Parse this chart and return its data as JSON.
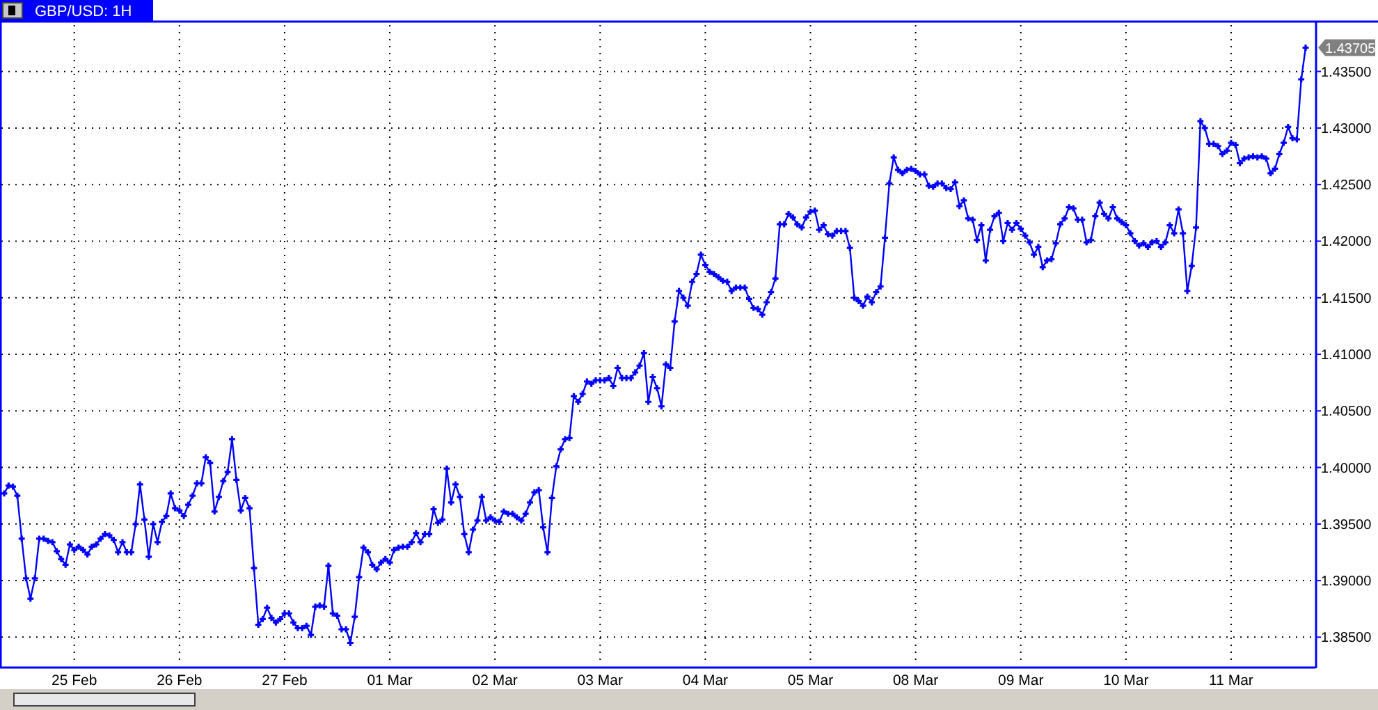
{
  "chart_data": {
    "type": "line",
    "title": "GBP/USD: 1H",
    "grid": true,
    "marker": "cross",
    "ylim": [
      1.3825,
      1.4391
    ],
    "yticks": [
      {
        "value": 1.385,
        "label": "1.38500"
      },
      {
        "value": 1.39,
        "label": "1.39000"
      },
      {
        "value": 1.395,
        "label": "1.39500"
      },
      {
        "value": 1.4,
        "label": "1.40000"
      },
      {
        "value": 1.405,
        "label": "1.40500"
      },
      {
        "value": 1.41,
        "label": "1.41000"
      },
      {
        "value": 1.415,
        "label": "1.41500"
      },
      {
        "value": 1.42,
        "label": "1.42000"
      },
      {
        "value": 1.425,
        "label": "1.42500"
      },
      {
        "value": 1.43,
        "label": "1.43000"
      },
      {
        "value": 1.435,
        "label": "1.43500"
      }
    ],
    "annotations": [
      "1.43705"
    ],
    "categories": [
      null,
      null,
      null,
      null,
      null,
      null,
      null,
      null,
      null,
      null,
      null,
      null,
      null,
      null,
      null,
      null,
      "25 Feb",
      null,
      null,
      null,
      null,
      null,
      null,
      null,
      null,
      null,
      null,
      null,
      null,
      null,
      null,
      null,
      null,
      null,
      null,
      null,
      null,
      null,
      null,
      null,
      "26 Feb",
      null,
      null,
      null,
      null,
      null,
      null,
      null,
      null,
      null,
      null,
      null,
      null,
      null,
      null,
      null,
      null,
      null,
      null,
      null,
      null,
      null,
      null,
      null,
      "27 Feb",
      null,
      null,
      null,
      null,
      null,
      null,
      null,
      null,
      null,
      null,
      null,
      null,
      null,
      null,
      null,
      null,
      null,
      null,
      null,
      null,
      null,
      null,
      null,
      "01 Mar",
      null,
      null,
      null,
      null,
      null,
      null,
      null,
      null,
      null,
      null,
      null,
      null,
      null,
      null,
      null,
      null,
      null,
      null,
      null,
      null,
      null,
      null,
      null,
      "02 Mar",
      null,
      null,
      null,
      null,
      null,
      null,
      null,
      null,
      null,
      null,
      null,
      null,
      null,
      null,
      null,
      null,
      null,
      null,
      null,
      null,
      null,
      null,
      null,
      "03 Mar",
      null,
      null,
      null,
      null,
      null,
      null,
      null,
      null,
      null,
      null,
      null,
      null,
      null,
      null,
      null,
      null,
      null,
      null,
      null,
      null,
      null,
      null,
      null,
      "04 Mar",
      null,
      null,
      null,
      null,
      null,
      null,
      null,
      null,
      null,
      null,
      null,
      null,
      null,
      null,
      null,
      null,
      null,
      null,
      null,
      null,
      null,
      null,
      null,
      "05 Mar",
      null,
      null,
      null,
      null,
      null,
      null,
      null,
      null,
      null,
      null,
      null,
      null,
      null,
      null,
      null,
      null,
      null,
      null,
      null,
      null,
      null,
      null,
      null,
      "08 Mar",
      null,
      null,
      null,
      null,
      null,
      null,
      null,
      null,
      null,
      null,
      null,
      null,
      null,
      null,
      null,
      null,
      null,
      null,
      null,
      null,
      null,
      null,
      null,
      "09 Mar",
      null,
      null,
      null,
      null,
      null,
      null,
      null,
      null,
      null,
      null,
      null,
      null,
      null,
      null,
      null,
      null,
      null,
      null,
      null,
      null,
      null,
      null,
      null,
      "10 Mar",
      null,
      null,
      null,
      null,
      null,
      null,
      null,
      null,
      null,
      null,
      null,
      null,
      null,
      null,
      null,
      null,
      null,
      null,
      null,
      null,
      null,
      null,
      null,
      "11 Mar",
      null,
      null,
      null,
      null,
      null,
      null,
      null,
      null,
      null,
      null,
      null,
      null,
      null,
      null,
      null,
      null,
      null
    ],
    "series": [
      {
        "color": "#0000ff",
        "values": [
          1.3977,
          1.3984,
          1.3983,
          1.3975,
          1.3937,
          1.3902,
          1.3884,
          1.3902,
          1.3937,
          1.3937,
          1.3935,
          1.3934,
          1.3926,
          1.3919,
          1.3914,
          1.3932,
          1.3927,
          1.393,
          1.3927,
          1.3923,
          1.393,
          1.3932,
          1.3937,
          1.3941,
          1.394,
          1.3936,
          1.3925,
          1.3934,
          1.3925,
          1.3925,
          1.395,
          1.3985,
          1.3954,
          1.3921,
          1.395,
          1.3934,
          1.3952,
          1.3957,
          1.3977,
          1.3964,
          1.3962,
          1.3957,
          1.3967,
          1.3975,
          1.3986,
          1.3986,
          1.4009,
          1.4004,
          1.3961,
          1.3974,
          1.3988,
          1.3996,
          1.4025,
          1.3989,
          1.3962,
          1.3973,
          1.3964,
          1.3911,
          1.3861,
          1.3866,
          1.3876,
          1.3867,
          1.3863,
          1.3866,
          1.3871,
          1.3871,
          1.3863,
          1.3858,
          1.3858,
          1.386,
          1.3852,
          1.3877,
          1.3878,
          1.3877,
          1.3913,
          1.3871,
          1.3869,
          1.3857,
          1.3857,
          1.3845,
          1.3868,
          1.3903,
          1.3929,
          1.3925,
          1.3914,
          1.391,
          1.3916,
          1.3919,
          1.3916,
          1.3927,
          1.3929,
          1.393,
          1.393,
          1.3934,
          1.3942,
          1.3934,
          1.3941,
          1.3941,
          1.3963,
          1.3951,
          1.3954,
          1.3999,
          1.3969,
          1.3985,
          1.3974,
          1.3941,
          1.3925,
          1.3945,
          1.3953,
          1.3974,
          1.3953,
          1.3956,
          1.3953,
          1.3952,
          1.3961,
          1.3959,
          1.3959,
          1.3956,
          1.3953,
          1.3959,
          1.3969,
          1.3978,
          1.398,
          1.3947,
          1.3925,
          1.3973,
          1.4001,
          1.4016,
          1.4025,
          1.4026,
          1.4063,
          1.4058,
          1.4065,
          1.4076,
          1.4074,
          1.4077,
          1.4077,
          1.4077,
          1.4079,
          1.4072,
          1.4088,
          1.4079,
          1.4079,
          1.4079,
          1.4084,
          1.409,
          1.4101,
          1.4058,
          1.408,
          1.407,
          1.4054,
          1.4091,
          1.4088,
          1.4129,
          1.4156,
          1.415,
          1.4143,
          1.4164,
          1.4171,
          1.4188,
          1.4179,
          1.4173,
          1.4171,
          1.4168,
          1.4165,
          1.4164,
          1.4156,
          1.4159,
          1.4159,
          1.4159,
          1.4149,
          1.4141,
          1.414,
          1.4135,
          1.4146,
          1.4155,
          1.4167,
          1.4215,
          1.4215,
          1.4224,
          1.4221,
          1.4215,
          1.4212,
          1.4221,
          1.4226,
          1.4227,
          1.421,
          1.4214,
          1.4206,
          1.4205,
          1.4209,
          1.4209,
          1.4209,
          1.4194,
          1.415,
          1.4147,
          1.4143,
          1.4151,
          1.4146,
          1.4155,
          1.416,
          1.4203,
          1.4251,
          1.4274,
          1.4263,
          1.426,
          1.4263,
          1.4264,
          1.4262,
          1.4259,
          1.4259,
          1.4249,
          1.4248,
          1.4251,
          1.4251,
          1.4247,
          1.4246,
          1.4252,
          1.4231,
          1.4236,
          1.422,
          1.4219,
          1.4201,
          1.4214,
          1.4183,
          1.421,
          1.4222,
          1.4225,
          1.42,
          1.4216,
          1.421,
          1.4216,
          1.4211,
          1.4205,
          1.4199,
          1.4188,
          1.4195,
          1.4177,
          1.4183,
          1.4184,
          1.4198,
          1.4215,
          1.422,
          1.423,
          1.4229,
          1.4219,
          1.4219,
          1.4199,
          1.4201,
          1.4222,
          1.4234,
          1.4224,
          1.422,
          1.423,
          1.422,
          1.4217,
          1.4214,
          1.4207,
          1.42,
          1.4196,
          1.4198,
          1.4195,
          1.4199,
          1.42,
          1.4195,
          1.4199,
          1.4214,
          1.4207,
          1.4228,
          1.4207,
          1.4156,
          1.4178,
          1.4212,
          1.4306,
          1.43,
          1.4286,
          1.4286,
          1.4284,
          1.4277,
          1.428,
          1.4287,
          1.4285,
          1.4269,
          1.4273,
          1.4274,
          1.4275,
          1.4274,
          1.4275,
          1.4273,
          1.426,
          1.4264,
          1.4277,
          1.4287,
          1.4301,
          1.4291,
          1.429,
          1.4343,
          1.4371
        ]
      }
    ]
  }
}
